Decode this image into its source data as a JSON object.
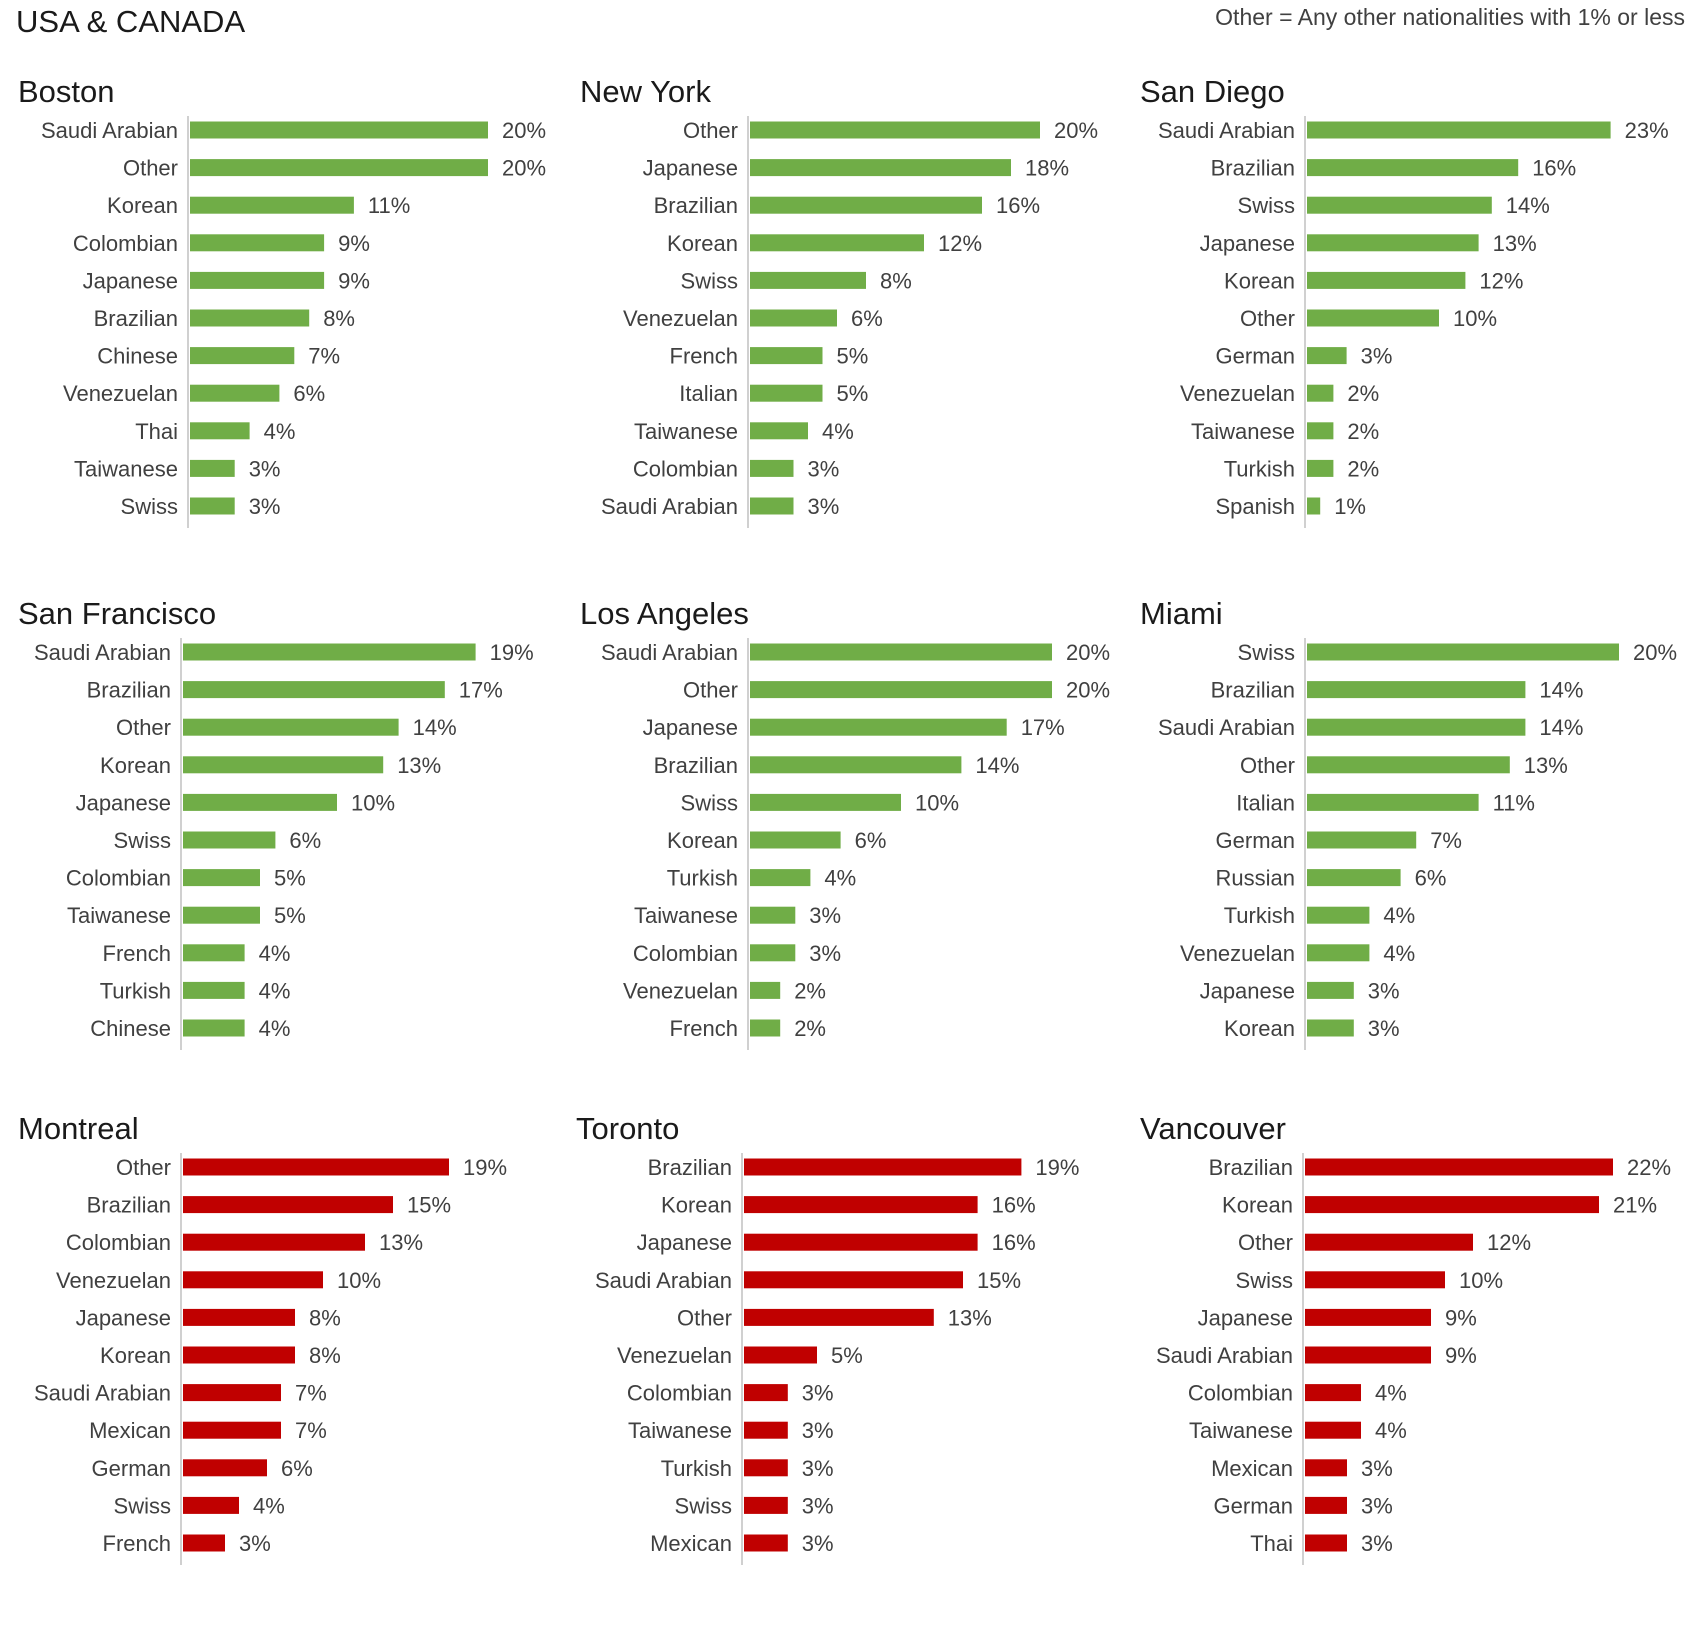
{
  "header": {
    "title": "USA & CANADA",
    "note": "Other = Any other nationalities with 1% or less"
  },
  "colors": {
    "usa": "#70ad47",
    "canada": "#c00000",
    "axis": "#d0d0d0"
  },
  "chart_data": [
    {
      "type": "bar",
      "orientation": "horizontal",
      "title": "Boston",
      "color": "#70ad47",
      "categories": [
        "Saudi Arabian",
        "Other",
        "Korean",
        "Colombian",
        "Japanese",
        "Brazilian",
        "Chinese",
        "Venezuelan",
        "Thai",
        "Taiwanese",
        "Swiss"
      ],
      "values": [
        20,
        20,
        11,
        9,
        9,
        8,
        7,
        6,
        4,
        3,
        3
      ],
      "labels": [
        "20%",
        "20%",
        "11%",
        "9%",
        "9%",
        "8%",
        "7%",
        "6%",
        "4%",
        "3%",
        "3%"
      ]
    },
    {
      "type": "bar",
      "orientation": "horizontal",
      "title": "New York",
      "color": "#70ad47",
      "categories": [
        "Other",
        "Japanese",
        "Brazilian",
        "Korean",
        "Swiss",
        "Venezuelan",
        "French",
        "Italian",
        "Taiwanese",
        "Colombian",
        "Saudi Arabian"
      ],
      "values": [
        20,
        18,
        16,
        12,
        8,
        6,
        5,
        5,
        4,
        3,
        3
      ],
      "labels": [
        "20%",
        "18%",
        "16%",
        "12%",
        "8%",
        "6%",
        "5%",
        "5%",
        "4%",
        "3%",
        "3%"
      ]
    },
    {
      "type": "bar",
      "orientation": "horizontal",
      "title": "San Diego",
      "color": "#70ad47",
      "categories": [
        "Saudi Arabian",
        "Brazilian",
        "Swiss",
        "Japanese",
        "Korean",
        "Other",
        "German",
        "Venezuelan",
        "Taiwanese",
        "Turkish",
        "Spanish"
      ],
      "values": [
        23,
        16,
        14,
        13,
        12,
        10,
        3,
        2,
        2,
        2,
        1
      ],
      "labels": [
        "23%",
        "16%",
        "14%",
        "13%",
        "12%",
        "10%",
        "3%",
        "2%",
        "2%",
        "2%",
        "1%"
      ]
    },
    {
      "type": "bar",
      "orientation": "horizontal",
      "title": "San Francisco",
      "color": "#70ad47",
      "categories": [
        "Saudi Arabian",
        "Brazilian",
        "Other",
        "Korean",
        "Japanese",
        "Swiss",
        "Colombian",
        "Taiwanese",
        "French",
        "Turkish",
        "Chinese"
      ],
      "values": [
        19,
        17,
        14,
        13,
        10,
        6,
        5,
        5,
        4,
        4,
        4
      ],
      "labels": [
        "19%",
        "17%",
        "14%",
        "13%",
        "10%",
        "6%",
        "5%",
        "5%",
        "4%",
        "4%",
        "4%"
      ]
    },
    {
      "type": "bar",
      "orientation": "horizontal",
      "title": "Los Angeles",
      "color": "#70ad47",
      "categories": [
        "Saudi Arabian",
        "Other",
        "Japanese",
        "Brazilian",
        "Swiss",
        "Korean",
        "Turkish",
        "Taiwanese",
        "Colombian",
        "Venezuelan",
        "French"
      ],
      "values": [
        20,
        20,
        17,
        14,
        10,
        6,
        4,
        3,
        3,
        2,
        2
      ],
      "labels": [
        "20%",
        "20%",
        "17%",
        "14%",
        "10%",
        "6%",
        "4%",
        "3%",
        "3%",
        "2%",
        "2%"
      ]
    },
    {
      "type": "bar",
      "orientation": "horizontal",
      "title": "Miami",
      "color": "#70ad47",
      "categories": [
        "Swiss",
        "Brazilian",
        "Saudi Arabian",
        "Other",
        "Italian",
        "German",
        "Russian",
        "Turkish",
        "Venezuelan",
        "Japanese",
        "Korean"
      ],
      "values": [
        20,
        14,
        14,
        13,
        11,
        7,
        6,
        4,
        4,
        3,
        3
      ],
      "labels": [
        "20%",
        "14%",
        "14%",
        "13%",
        "11%",
        "7%",
        "6%",
        "4%",
        "4%",
        "3%",
        "3%"
      ]
    },
    {
      "type": "bar",
      "orientation": "horizontal",
      "title": "Montreal",
      "color": "#c00000",
      "categories": [
        "Other",
        "Brazilian",
        "Colombian",
        "Venezuelan",
        "Japanese",
        "Korean",
        "Saudi Arabian",
        "Mexican",
        "German",
        "Swiss",
        "French"
      ],
      "values": [
        19,
        15,
        13,
        10,
        8,
        8,
        7,
        7,
        6,
        4,
        3
      ],
      "labels": [
        "19%",
        "15%",
        "13%",
        "10%",
        "8%",
        "8%",
        "7%",
        "7%",
        "6%",
        "4%",
        "3%"
      ]
    },
    {
      "type": "bar",
      "orientation": "horizontal",
      "title": "Toronto",
      "color": "#c00000",
      "categories": [
        "Brazilian",
        "Korean",
        "Japanese",
        "Saudi Arabian",
        "Other",
        "Venezuelan",
        "Colombian",
        "Taiwanese",
        "Turkish",
        "Swiss",
        "Mexican"
      ],
      "values": [
        19,
        16,
        16,
        15,
        13,
        5,
        3,
        3,
        3,
        3,
        3
      ],
      "labels": [
        "19%",
        "16%",
        "16%",
        "15%",
        "13%",
        "5%",
        "3%",
        "3%",
        "3%",
        "3%",
        "3%"
      ]
    },
    {
      "type": "bar",
      "orientation": "horizontal",
      "title": "Vancouver",
      "color": "#c00000",
      "categories": [
        "Brazilian",
        "Korean",
        "Other",
        "Swiss",
        "Japanese",
        "Saudi Arabian",
        "Colombian",
        "Taiwanese",
        "Mexican",
        "German",
        "Thai"
      ],
      "values": [
        22,
        21,
        12,
        10,
        9,
        9,
        4,
        4,
        3,
        3,
        3
      ],
      "labels": [
        "22%",
        "21%",
        "12%",
        "10%",
        "9%",
        "9%",
        "4%",
        "4%",
        "3%",
        "3%",
        "3%"
      ]
    }
  ]
}
